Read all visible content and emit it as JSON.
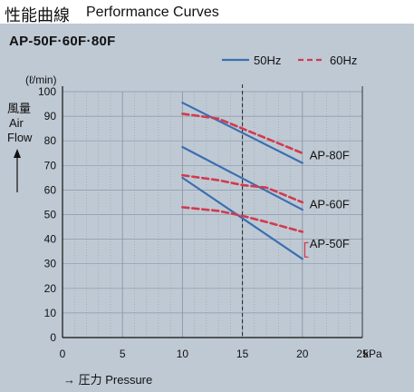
{
  "header": {
    "title_ja": "性能曲線",
    "title_en": "Performance Curves"
  },
  "colors": {
    "background": "#bfc9d4",
    "grid": "#8a97a6",
    "line_50hz": "#3b6fb0",
    "line_60hz": "#d23a4e",
    "bracket": "#d23a4e"
  },
  "chart_data": {
    "type": "line",
    "title": "AP-50F·60F·80F",
    "xlabel": "→ 圧力 Pressure",
    "x_unit": "kPa",
    "ylabel_ja": "風量",
    "ylabel_en": [
      "Air",
      "Flow"
    ],
    "y_unit": "(ℓ/min)",
    "xlim": [
      0,
      25
    ],
    "ylim": [
      0,
      100
    ],
    "xticks": [
      0,
      5,
      10,
      15,
      20,
      25
    ],
    "yticks": [
      0,
      10,
      20,
      30,
      40,
      50,
      60,
      70,
      80,
      90,
      100
    ],
    "reference_line_x": 15,
    "grid": true,
    "legend": {
      "position": "top-right",
      "entries": [
        "50Hz",
        "60Hz"
      ]
    },
    "series": [
      {
        "model": "AP-80F",
        "name": "50Hz",
        "x": [
          10,
          20
        ],
        "y": [
          95.5,
          71
        ]
      },
      {
        "model": "AP-80F",
        "name": "60Hz",
        "x": [
          10,
          13,
          15,
          17,
          20
        ],
        "y": [
          91,
          89,
          85,
          81,
          75
        ]
      },
      {
        "model": "AP-60F",
        "name": "50Hz",
        "x": [
          10,
          20
        ],
        "y": [
          77.5,
          52
        ]
      },
      {
        "model": "AP-60F",
        "name": "60Hz",
        "x": [
          10,
          13,
          15,
          17,
          20
        ],
        "y": [
          66,
          64,
          62,
          61,
          55
        ]
      },
      {
        "model": "AP-50F",
        "name": "50Hz",
        "x": [
          10,
          20
        ],
        "y": [
          65,
          32
        ]
      },
      {
        "model": "AP-50F",
        "name": "60Hz",
        "x": [
          10,
          13,
          15,
          17,
          20
        ],
        "y": [
          53,
          51.5,
          49.5,
          47,
          43
        ]
      }
    ],
    "curve_labels": [
      {
        "text": "AP-80F",
        "x": 20.6,
        "y": 74
      },
      {
        "text": "AP-60F",
        "x": 20.6,
        "y": 54
      },
      {
        "text": "AP-50F",
        "x": 20.6,
        "y": 38
      }
    ]
  }
}
